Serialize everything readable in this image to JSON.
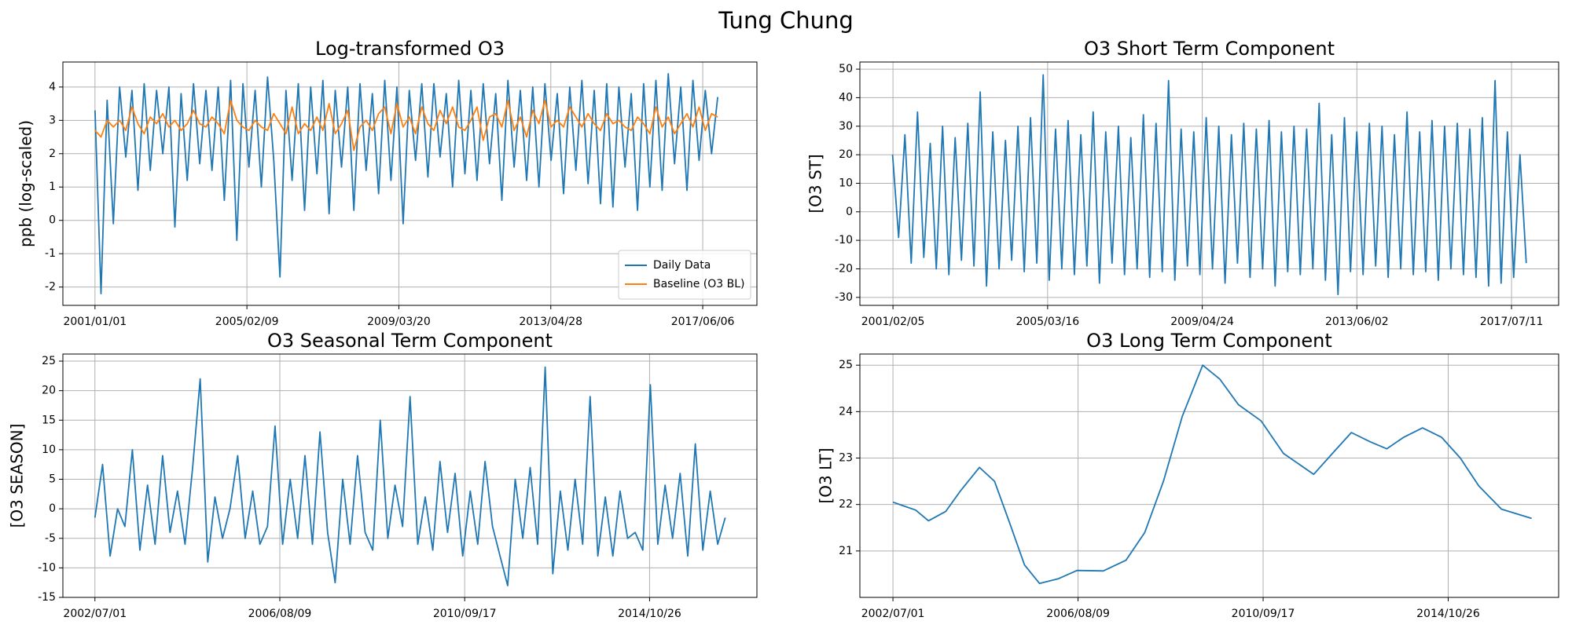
{
  "title": "Tung Chung",
  "chart_data": [
    {
      "type": "line",
      "title": "Log-transformed O3",
      "ylabel": "ppb (log-scaled)",
      "x": [
        "2001/01/01",
        "2001/03/01",
        "2001/05/01",
        "2001/07/01",
        "2001/09/01",
        "2001/11/01",
        "2002/01/01",
        "2002/03/01",
        "2002/05/01",
        "2002/07/01",
        "2002/09/01",
        "2002/11/01",
        "2003/01/01",
        "2003/03/01",
        "2003/05/01",
        "2003/07/01",
        "2003/09/01",
        "2003/11/01",
        "2004/01/01",
        "2004/03/01",
        "2004/05/01",
        "2004/07/01",
        "2004/09/01",
        "2004/11/01",
        "2005/01/01",
        "2005/03/01",
        "2005/05/01",
        "2005/07/01",
        "2005/09/01",
        "2005/11/01",
        "2006/01/01",
        "2006/03/01",
        "2006/05/01",
        "2006/07/01",
        "2006/09/01",
        "2006/11/01",
        "2007/01/01",
        "2007/03/01",
        "2007/05/01",
        "2007/07/01",
        "2007/09/01",
        "2007/11/01",
        "2008/01/01",
        "2008/03/01",
        "2008/05/01",
        "2008/07/01",
        "2008/09/01",
        "2008/11/01",
        "2009/01/01",
        "2009/03/01",
        "2009/05/01",
        "2009/07/01",
        "2009/09/01",
        "2009/11/01",
        "2010/01/01",
        "2010/03/01",
        "2010/05/01",
        "2010/07/01",
        "2010/09/01",
        "2010/11/01",
        "2011/01/01",
        "2011/03/01",
        "2011/05/01",
        "2011/07/01",
        "2011/09/01",
        "2011/11/01",
        "2012/01/01",
        "2012/03/01",
        "2012/05/01",
        "2012/07/01",
        "2012/09/01",
        "2012/11/01",
        "2013/01/01",
        "2013/03/01",
        "2013/05/01",
        "2013/07/01",
        "2013/09/01",
        "2013/11/01",
        "2014/01/01",
        "2014/03/01",
        "2014/05/01",
        "2014/07/01",
        "2014/09/01",
        "2014/11/01",
        "2015/01/01",
        "2015/03/01",
        "2015/05/01",
        "2015/07/01",
        "2015/09/01",
        "2015/11/01",
        "2016/01/01",
        "2016/03/01",
        "2016/05/01",
        "2016/07/01",
        "2016/09/01",
        "2016/11/01",
        "2017/01/01",
        "2017/03/01",
        "2017/05/01",
        "2017/07/01",
        "2017/09/01",
        "2017/11/01"
      ],
      "series": [
        {
          "name": "Daily Data",
          "color": "#1f77b4",
          "values": [
            3.3,
            -2.2,
            3.6,
            -0.1,
            4.0,
            1.9,
            3.9,
            0.9,
            4.1,
            1.5,
            3.9,
            2.0,
            4.0,
            -0.2,
            3.8,
            1.2,
            4.1,
            1.7,
            3.9,
            1.5,
            4.0,
            0.6,
            4.2,
            -0.6,
            4.1,
            1.6,
            3.9,
            1.0,
            4.3,
            1.8,
            -1.7,
            3.9,
            1.2,
            4.1,
            0.3,
            4.0,
            1.4,
            4.2,
            0.2,
            3.9,
            1.6,
            4.0,
            0.3,
            4.1,
            1.5,
            3.8,
            0.8,
            4.2,
            1.2,
            4.0,
            -0.1,
            3.9,
            1.8,
            4.1,
            1.3,
            4.1,
            1.9,
            3.8,
            1.0,
            4.2,
            1.4,
            3.9,
            1.2,
            4.1,
            1.7,
            3.8,
            0.6,
            4.2,
            1.6,
            3.9,
            1.2,
            4.0,
            1.0,
            4.1,
            1.8,
            3.8,
            0.8,
            4.0,
            1.5,
            4.2,
            1.1,
            3.9,
            0.5,
            4.1,
            0.4,
            4.0,
            1.6,
            3.8,
            0.3,
            4.1,
            1.0,
            4.2,
            0.9,
            4.4,
            1.7,
            4.0,
            0.9,
            4.2,
            1.8,
            3.9,
            2.0,
            3.7
          ]
        },
        {
          "name": "Baseline (O3 BL)",
          "color": "#ff7f0e",
          "values": [
            2.7,
            2.5,
            3.0,
            2.8,
            3.0,
            2.7,
            3.4,
            2.9,
            2.6,
            3.1,
            2.9,
            3.2,
            2.8,
            3.0,
            2.7,
            2.9,
            3.3,
            2.9,
            2.8,
            3.1,
            2.9,
            2.6,
            3.6,
            3.0,
            2.8,
            2.7,
            3.0,
            2.8,
            2.7,
            3.2,
            2.9,
            2.6,
            3.4,
            2.6,
            2.9,
            2.7,
            3.1,
            2.7,
            3.5,
            2.6,
            2.9,
            3.3,
            2.1,
            2.8,
            3.0,
            2.7,
            3.2,
            3.4,
            2.6,
            3.5,
            2.8,
            3.1,
            2.6,
            3.4,
            2.9,
            2.7,
            3.3,
            2.9,
            3.4,
            2.8,
            2.7,
            3.0,
            3.4,
            2.4,
            3.1,
            3.2,
            2.8,
            3.6,
            2.7,
            3.1,
            2.5,
            3.3,
            2.9,
            3.6,
            2.8,
            3.0,
            2.8,
            3.4,
            3.1,
            2.8,
            3.2,
            2.9,
            2.7,
            3.2,
            2.9,
            3.0,
            2.8,
            2.7,
            3.1,
            2.9,
            2.6,
            3.4,
            2.8,
            3.1,
            2.6,
            2.9,
            3.2,
            2.8,
            3.4,
            2.7,
            3.2,
            3.1
          ]
        }
      ],
      "xlim": [
        "2000/02/19",
        "2018/11/23"
      ],
      "xticks": [
        "2001/01/01",
        "2005/02/09",
        "2009/03/20",
        "2013/04/28",
        "2017/06/06"
      ],
      "ylim": [
        -2.55,
        4.75
      ],
      "yticks": [
        -2,
        -1,
        0,
        1,
        2,
        3,
        4
      ],
      "grid": true,
      "legend": "lower right"
    },
    {
      "type": "line",
      "title": "O3 Short Term Component",
      "ylabel": "[O3 ST]",
      "x": [
        "2001/02/01",
        "2001/04/01",
        "2001/06/01",
        "2001/08/01",
        "2001/10/01",
        "2001/12/01",
        "2002/02/01",
        "2002/04/01",
        "2002/06/01",
        "2002/08/01",
        "2002/10/01",
        "2002/12/01",
        "2003/02/01",
        "2003/04/01",
        "2003/06/01",
        "2003/08/01",
        "2003/10/01",
        "2003/12/01",
        "2004/02/01",
        "2004/04/01",
        "2004/06/01",
        "2004/08/01",
        "2004/10/01",
        "2004/12/01",
        "2005/02/01",
        "2005/04/01",
        "2005/06/01",
        "2005/08/01",
        "2005/10/01",
        "2005/12/01",
        "2006/02/01",
        "2006/04/01",
        "2006/06/01",
        "2006/08/01",
        "2006/10/01",
        "2006/12/01",
        "2007/02/01",
        "2007/04/01",
        "2007/06/01",
        "2007/08/01",
        "2007/10/01",
        "2007/12/01",
        "2008/02/01",
        "2008/04/01",
        "2008/06/01",
        "2008/08/01",
        "2008/10/01",
        "2008/12/01",
        "2009/02/01",
        "2009/04/01",
        "2009/06/01",
        "2009/08/01",
        "2009/10/01",
        "2009/12/01",
        "2010/02/01",
        "2010/04/01",
        "2010/06/01",
        "2010/08/01",
        "2010/10/01",
        "2010/12/01",
        "2011/02/01",
        "2011/04/01",
        "2011/06/01",
        "2011/08/01",
        "2011/10/01",
        "2011/12/01",
        "2012/02/01",
        "2012/04/01",
        "2012/06/01",
        "2012/08/01",
        "2012/10/01",
        "2012/12/01",
        "2013/02/01",
        "2013/04/01",
        "2013/06/01",
        "2013/08/01",
        "2013/10/01",
        "2013/12/01",
        "2014/02/01",
        "2014/04/01",
        "2014/06/01",
        "2014/08/01",
        "2014/10/01",
        "2014/12/01",
        "2015/02/01",
        "2015/04/01",
        "2015/06/01",
        "2015/08/01",
        "2015/10/01",
        "2015/12/01",
        "2016/02/01",
        "2016/04/01",
        "2016/06/01",
        "2016/08/01",
        "2016/10/01",
        "2016/12/01",
        "2017/02/01",
        "2017/04/01",
        "2017/06/01",
        "2017/08/01",
        "2017/10/01",
        "2017/12/01"
      ],
      "series": [
        {
          "name": "O3 ST",
          "color": "#1f77b4",
          "values": [
            20,
            -9,
            27,
            -18,
            35,
            -16,
            24,
            -20,
            30,
            -22,
            26,
            -17,
            31,
            -19,
            42,
            -26,
            28,
            -20,
            25,
            -17,
            30,
            -21,
            33,
            -18,
            48,
            -24,
            29,
            -20,
            32,
            -22,
            27,
            -19,
            35,
            -25,
            28,
            -18,
            30,
            -22,
            26,
            -20,
            34,
            -23,
            31,
            -21,
            46,
            -24,
            29,
            -19,
            28,
            -22,
            33,
            -20,
            30,
            -25,
            27,
            -18,
            31,
            -23,
            29,
            -20,
            32,
            -26,
            28,
            -21,
            30,
            -22,
            29,
            -20,
            38,
            -24,
            27,
            -29,
            33,
            -21,
            28,
            -22,
            31,
            -19,
            30,
            -23,
            27,
            -20,
            35,
            -22,
            28,
            -21,
            32,
            -24,
            30,
            -20,
            31,
            -22,
            29,
            -23,
            33,
            -26,
            46,
            -25,
            28,
            -23,
            20,
            -18
          ]
        }
      ],
      "xlim": [
        "2000/03/21",
        "2018/10/11"
      ],
      "xticks": [
        "2001/02/05",
        "2005/03/16",
        "2009/04/24",
        "2013/06/02",
        "2017/07/11"
      ],
      "ylim": [
        -32.8,
        52.5
      ],
      "yticks": [
        -30,
        -20,
        -10,
        0,
        10,
        20,
        30,
        40,
        50
      ],
      "grid": true
    },
    {
      "type": "line",
      "title": "O3 Seasonal Term Component",
      "ylabel": "[O3 SEASON]",
      "x": [
        "2002/07/01",
        "2002/09/01",
        "2002/11/01",
        "2003/01/01",
        "2003/03/01",
        "2003/05/01",
        "2003/07/01",
        "2003/09/01",
        "2003/11/01",
        "2004/01/01",
        "2004/03/01",
        "2004/05/01",
        "2004/07/01",
        "2004/09/01",
        "2004/11/01",
        "2005/01/01",
        "2005/03/01",
        "2005/05/01",
        "2005/07/01",
        "2005/09/01",
        "2005/11/01",
        "2006/01/01",
        "2006/03/01",
        "2006/05/01",
        "2006/07/01",
        "2006/09/01",
        "2006/11/01",
        "2007/01/01",
        "2007/03/01",
        "2007/05/01",
        "2007/07/01",
        "2007/09/01",
        "2007/11/01",
        "2008/01/01",
        "2008/03/01",
        "2008/05/01",
        "2008/07/01",
        "2008/09/01",
        "2008/11/01",
        "2009/01/01",
        "2009/03/01",
        "2009/05/01",
        "2009/07/01",
        "2009/09/01",
        "2009/11/01",
        "2010/01/01",
        "2010/03/01",
        "2010/05/01",
        "2010/07/01",
        "2010/09/01",
        "2010/11/01",
        "2011/01/01",
        "2011/03/01",
        "2011/05/01",
        "2011/07/01",
        "2011/09/01",
        "2011/11/01",
        "2012/01/01",
        "2012/03/01",
        "2012/05/01",
        "2012/07/01",
        "2012/09/01",
        "2012/11/01",
        "2013/01/01",
        "2013/03/01",
        "2013/05/01",
        "2013/07/01",
        "2013/09/01",
        "2013/11/01",
        "2014/01/01",
        "2014/03/01",
        "2014/05/01",
        "2014/07/01",
        "2014/09/01",
        "2014/11/01",
        "2015/01/01",
        "2015/03/01",
        "2015/05/01",
        "2015/07/01",
        "2015/09/01",
        "2015/11/01",
        "2016/01/01",
        "2016/03/01",
        "2016/05/01",
        "2016/07/01"
      ],
      "series": [
        {
          "name": "O3 SEASON",
          "color": "#1f77b4",
          "values": [
            -1.5,
            7.5,
            -8,
            0,
            -3,
            10,
            -7,
            4,
            -6,
            9,
            -4,
            3,
            -6,
            7,
            22,
            -9,
            2,
            -5,
            0,
            9,
            -5,
            3,
            -6,
            -3,
            14,
            -6,
            5,
            -5,
            9,
            -6,
            13,
            -4,
            -12.5,
            5,
            -6,
            9,
            -4,
            -7,
            15,
            -5,
            4,
            -3,
            19,
            -6,
            2,
            -7,
            8,
            -4,
            6,
            -8,
            3,
            -6,
            8,
            -3,
            -8,
            -13,
            5,
            -5,
            7,
            -6,
            24,
            -11,
            3,
            -7,
            5,
            -6,
            19,
            -8,
            2,
            -8,
            3,
            -5,
            -4,
            -7,
            21,
            -6,
            4,
            -5,
            6,
            -8,
            11,
            -7,
            3,
            -6,
            -1.5
          ]
        }
      ],
      "xlim": [
        "2001/10/14",
        "2017/03/15"
      ],
      "xticks": [
        "2002/07/01",
        "2006/08/09",
        "2010/09/17",
        "2014/10/26"
      ],
      "ylim": [
        -15,
        26.2
      ],
      "yticks": [
        -15,
        -10,
        -5,
        0,
        5,
        10,
        15,
        20,
        25
      ],
      "grid": true
    },
    {
      "type": "line",
      "title": "O3 Long Term Component",
      "ylabel": "[O3 LT]",
      "x": [
        "2002/07/01",
        "2003/01/01",
        "2003/04/15",
        "2003/09/01",
        "2004/01/01",
        "2004/06/01",
        "2004/10/01",
        "2005/02/01",
        "2005/06/01",
        "2005/10/01",
        "2006/03/01",
        "2006/08/01",
        "2007/03/01",
        "2007/09/01",
        "2008/02/01",
        "2008/07/01",
        "2008/12/01",
        "2009/05/15",
        "2009/10/01",
        "2010/03/01",
        "2010/09/01",
        "2011/03/01",
        "2011/11/01",
        "2012/04/01",
        "2012/09/01",
        "2013/02/01",
        "2013/06/15",
        "2013/11/01",
        "2014/04/01",
        "2014/09/01",
        "2015/02/01",
        "2015/07/01",
        "2016/01/01",
        "2016/09/01"
      ],
      "series": [
        {
          "name": "O3 LT",
          "color": "#1f77b4",
          "values": [
            22.05,
            21.88,
            21.65,
            21.85,
            22.3,
            22.8,
            22.5,
            21.6,
            20.7,
            20.3,
            20.4,
            20.58,
            20.57,
            20.8,
            21.4,
            22.5,
            23.9,
            25.0,
            24.7,
            24.15,
            23.8,
            23.1,
            22.65,
            23.1,
            23.55,
            23.35,
            23.2,
            23.45,
            23.65,
            23.45,
            23.0,
            22.4,
            21.9,
            21.7
          ]
        }
      ],
      "xlim": [
        "2001/10/06",
        "2017/04/08"
      ],
      "xticks": [
        "2002/07/01",
        "2006/08/09",
        "2010/09/17",
        "2014/10/26"
      ],
      "ylim": [
        20.0,
        25.24
      ],
      "yticks": [
        21,
        22,
        23,
        24,
        25
      ],
      "grid": true
    }
  ]
}
